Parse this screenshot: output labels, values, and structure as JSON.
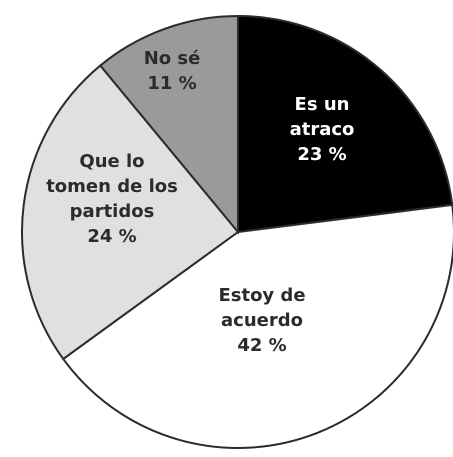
{
  "chart_data": {
    "type": "pie",
    "slices": [
      {
        "label_lines": [
          "Es un",
          "atraco"
        ],
        "value": 23,
        "value_text": "23 %",
        "color": "#000000",
        "text_color": "#ffffff"
      },
      {
        "label_lines": [
          "Estoy de",
          "acuerdo"
        ],
        "value": 42,
        "value_text": "42 %",
        "color": "#ffffff",
        "text_color": "#2b2b2b"
      },
      {
        "label_lines": [
          "Que lo",
          "tomen de los",
          "partidos"
        ],
        "value": 24,
        "value_text": "24 %",
        "color": "#e0e0e0",
        "text_color": "#2b2b2b"
      },
      {
        "label_lines": [
          "No sé"
        ],
        "value": 11,
        "value_text": "11 %",
        "color": "#9a9a9a",
        "text_color": "#2b2b2b"
      }
    ]
  }
}
